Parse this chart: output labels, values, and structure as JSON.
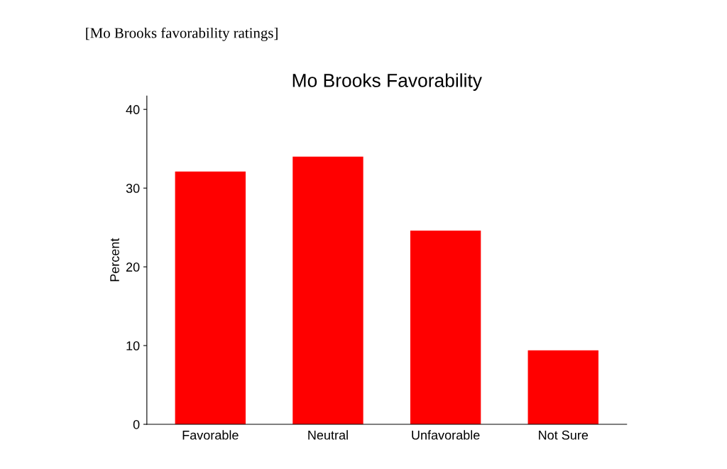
{
  "chart_data": {
    "type": "bar",
    "title": "Mo Brooks Favorability",
    "ylabel": "Percent",
    "categories": [
      "Favorable",
      "Neutral",
      "Unfavorable",
      "Not Sure"
    ],
    "values": [
      32.1,
      34.0,
      24.6,
      9.4
    ],
    "color": "#ff0000",
    "ylim": [
      0,
      41.7
    ],
    "yticks": [
      0,
      10,
      20,
      30,
      40
    ],
    "grid": false,
    "legend": false,
    "annotations": [
      "[Mo Brooks favorability ratings]"
    ]
  }
}
